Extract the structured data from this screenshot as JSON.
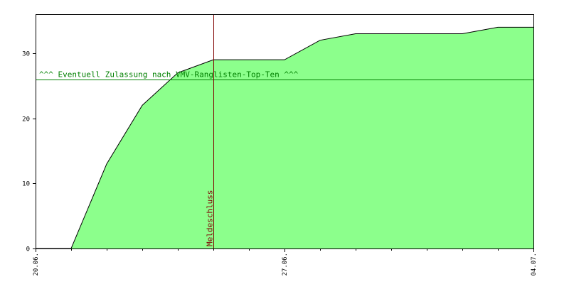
{
  "chart_data": {
    "type": "area",
    "title": "",
    "xlabel": "",
    "ylabel": "",
    "x_ticks": [
      "20.06.",
      "27.06.",
      "04.07."
    ],
    "y_ticks": [
      0,
      10,
      20,
      30
    ],
    "ylim": [
      0,
      36
    ],
    "grid": false,
    "fill_color": "#8cff8c",
    "line_color": "#000000",
    "points": [
      {
        "x": "20.06.",
        "y": 0
      },
      {
        "x": "21.06.",
        "y": 0
      },
      {
        "x": "22.06.",
        "y": 13
      },
      {
        "x": "23.06.",
        "y": 22
      },
      {
        "x": "24.06.",
        "y": 27
      },
      {
        "x": "25.06.",
        "y": 29
      },
      {
        "x": "26.06.",
        "y": 29
      },
      {
        "x": "27.06.",
        "y": 29
      },
      {
        "x": "28.06.",
        "y": 32
      },
      {
        "x": "29.06.",
        "y": 33
      },
      {
        "x": "30.06.",
        "y": 33
      },
      {
        "x": "01.07.",
        "y": 33
      },
      {
        "x": "02.07.",
        "y": 33
      },
      {
        "x": "03.07.",
        "y": 34
      },
      {
        "x": "04.07.",
        "y": 34
      }
    ],
    "threshold": {
      "y": 26,
      "label": "^^^ Eventuell Zulassung nach VMV-Ranglisten-Top-Ten ^^^",
      "color": "#008000"
    },
    "deadline": {
      "x": "25.06.",
      "label": "Meldeschluss",
      "color": "#800000"
    }
  }
}
